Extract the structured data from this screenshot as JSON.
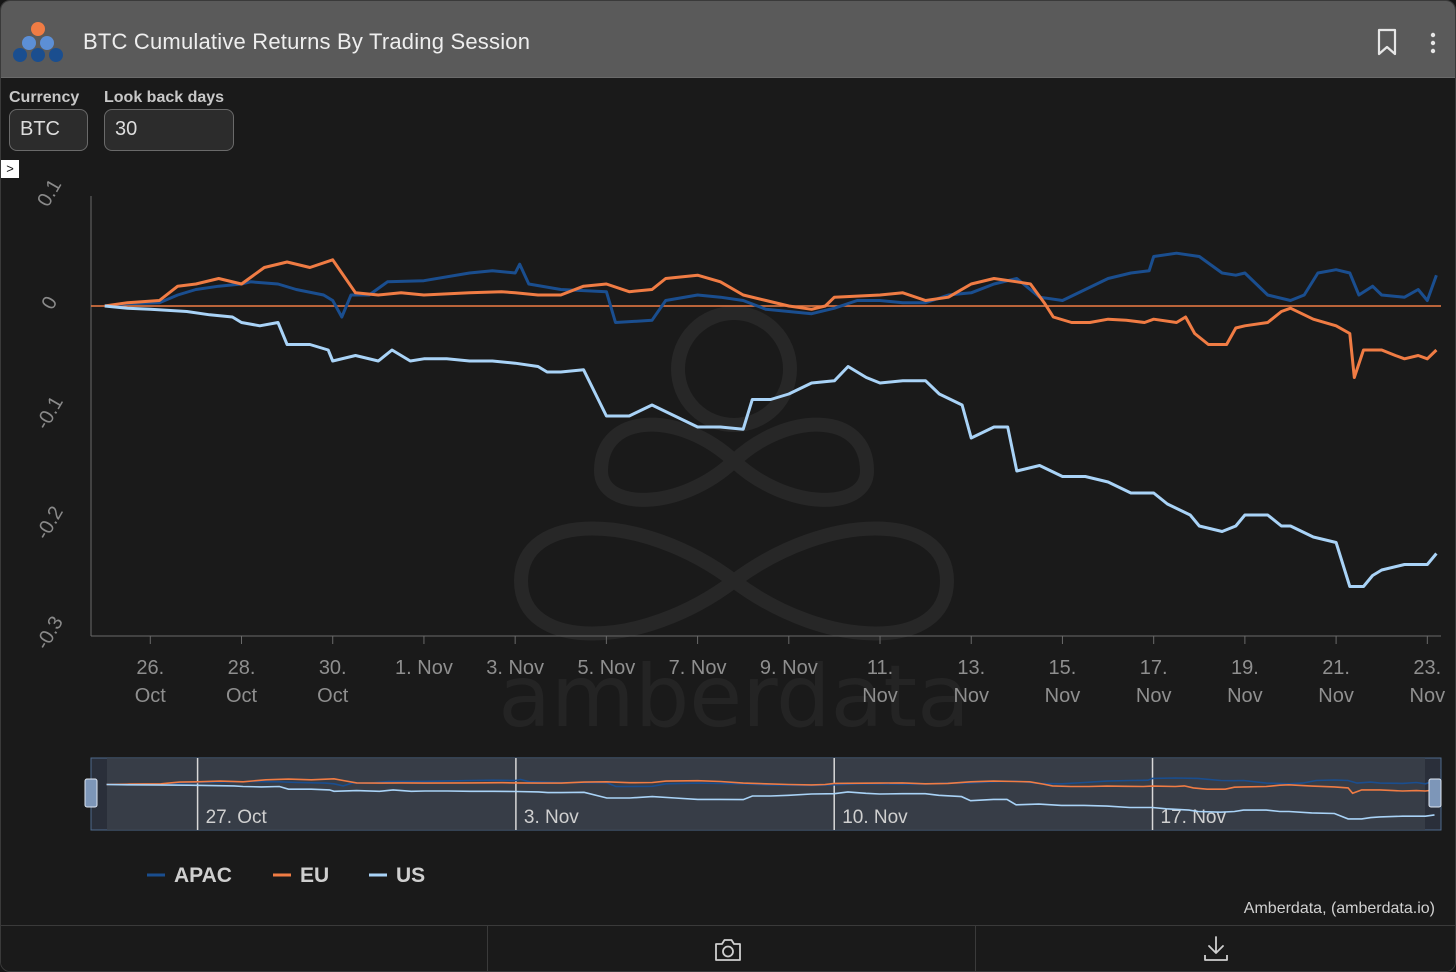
{
  "header": {
    "title": "BTC Cumulative Returns By Trading Session",
    "icons": [
      "app-logo-icon",
      "bookmark-icon",
      "more-vertical-icon"
    ]
  },
  "controls": {
    "currency_label": "Currency",
    "currency_value": "BTC",
    "lookback_label": "Look back days",
    "lookback_value": "30",
    "expand_glyph": ">"
  },
  "watermark_text": "amberdata",
  "credit": "Amberdata, (amberdata.io)",
  "footer": {
    "icons": [
      "camera-icon",
      "download-icon"
    ]
  },
  "colors": {
    "APAC": "#1a4e8f",
    "EU": "#f07c44",
    "US": "#a9d3f7",
    "zero_line": "#f07c44",
    "background": "#161616"
  },
  "chart_data": {
    "type": "line",
    "title": "BTC Cumulative Returns By Trading Session",
    "x_unit": "days since 25 Oct",
    "xlim": [
      -0.3,
      29.3
    ],
    "ylim": [
      -0.3,
      0.1
    ],
    "y_ticks": [
      "0.1",
      "0",
      "-0.1",
      "-0.2",
      "-0.3"
    ],
    "y_tick_values": [
      0.1,
      0,
      -0.1,
      -0.2,
      -0.3
    ],
    "x_ticks": [
      {
        "x": 1,
        "l1": "26.",
        "l2": "Oct"
      },
      {
        "x": 3,
        "l1": "28.",
        "l2": "Oct"
      },
      {
        "x": 5,
        "l1": "30.",
        "l2": "Oct"
      },
      {
        "x": 7,
        "l1": "1. Nov",
        "l2": ""
      },
      {
        "x": 9,
        "l1": "3. Nov",
        "l2": ""
      },
      {
        "x": 11,
        "l1": "5. Nov",
        "l2": ""
      },
      {
        "x": 13,
        "l1": "7. Nov",
        "l2": ""
      },
      {
        "x": 15,
        "l1": "9. Nov",
        "l2": ""
      },
      {
        "x": 17,
        "l1": "11.",
        "l2": "Nov"
      },
      {
        "x": 19,
        "l1": "13.",
        "l2": "Nov"
      },
      {
        "x": 21,
        "l1": "15.",
        "l2": "Nov"
      },
      {
        "x": 23,
        "l1": "17.",
        "l2": "Nov"
      },
      {
        "x": 25,
        "l1": "19.",
        "l2": "Nov"
      },
      {
        "x": 27,
        "l1": "21.",
        "l2": "Nov"
      },
      {
        "x": 29,
        "l1": "23.",
        "l2": "Nov"
      }
    ],
    "navigator_ticks": [
      {
        "x": 2,
        "label": "27. Oct"
      },
      {
        "x": 9,
        "label": "3. Nov"
      },
      {
        "x": 16,
        "label": "10. Nov"
      },
      {
        "x": 23,
        "label": "17. Nov"
      }
    ],
    "series": [
      {
        "name": "APAC",
        "points": [
          [
            0,
            0
          ],
          [
            0.5,
            0.002
          ],
          [
            1.2,
            0.003
          ],
          [
            1.6,
            0.01
          ],
          [
            2,
            0.015
          ],
          [
            2.5,
            0.018
          ],
          [
            3,
            0.02
          ],
          [
            3.2,
            0.022
          ],
          [
            3.8,
            0.02
          ],
          [
            4.2,
            0.015
          ],
          [
            4.8,
            0.01
          ],
          [
            5,
            0.005
          ],
          [
            5.2,
            -0.01
          ],
          [
            5.4,
            0.01
          ],
          [
            5.8,
            0.01
          ],
          [
            6.2,
            0.022
          ],
          [
            7,
            0.023
          ],
          [
            8,
            0.03
          ],
          [
            8.5,
            0.032
          ],
          [
            9,
            0.03
          ],
          [
            9.1,
            0.038
          ],
          [
            9.3,
            0.02
          ],
          [
            10,
            0.015
          ],
          [
            11,
            0.013
          ],
          [
            11.2,
            -0.015
          ],
          [
            12,
            -0.013
          ],
          [
            12.3,
            0.005
          ],
          [
            13,
            0.01
          ],
          [
            13.5,
            0.008
          ],
          [
            14,
            0.005
          ],
          [
            14.5,
            -0.003
          ],
          [
            15,
            -0.005
          ],
          [
            15.5,
            -0.007
          ],
          [
            16,
            -0.002
          ],
          [
            16.5,
            0.005
          ],
          [
            17,
            0.005
          ],
          [
            17.5,
            0.003
          ],
          [
            18,
            0.003
          ],
          [
            18.5,
            0.01
          ],
          [
            19,
            0.012
          ],
          [
            19.5,
            0.02
          ],
          [
            20,
            0.025
          ],
          [
            20.5,
            0.008
          ],
          [
            21,
            0.005
          ],
          [
            21.5,
            0.015
          ],
          [
            22,
            0.025
          ],
          [
            22.5,
            0.03
          ],
          [
            22.9,
            0.032
          ],
          [
            23,
            0.045
          ],
          [
            23.5,
            0.048
          ],
          [
            24,
            0.045
          ],
          [
            24.5,
            0.03
          ],
          [
            24.8,
            0.028
          ],
          [
            25,
            0.03
          ],
          [
            25.5,
            0.01
          ],
          [
            26,
            0.005
          ],
          [
            26.3,
            0.01
          ],
          [
            26.6,
            0.03
          ],
          [
            27,
            0.033
          ],
          [
            27.3,
            0.03
          ],
          [
            27.5,
            0.01
          ],
          [
            27.8,
            0.018
          ],
          [
            28,
            0.01
          ],
          [
            28.5,
            0.008
          ],
          [
            28.8,
            0.015
          ],
          [
            29,
            0.005
          ],
          [
            29.2,
            0.028
          ]
        ]
      },
      {
        "name": "EU",
        "points": [
          [
            0,
            0
          ],
          [
            0.5,
            0.003
          ],
          [
            1.2,
            0.005
          ],
          [
            1.6,
            0.018
          ],
          [
            2,
            0.02
          ],
          [
            2.5,
            0.025
          ],
          [
            3,
            0.02
          ],
          [
            3.5,
            0.035
          ],
          [
            4,
            0.04
          ],
          [
            4.5,
            0.035
          ],
          [
            5,
            0.042
          ],
          [
            5.2,
            0.03
          ],
          [
            5.5,
            0.012
          ],
          [
            6,
            0.01
          ],
          [
            6.5,
            0.012
          ],
          [
            7,
            0.01
          ],
          [
            8,
            0.012
          ],
          [
            8.7,
            0.013
          ],
          [
            9,
            0.012
          ],
          [
            9.5,
            0.01
          ],
          [
            10,
            0.01
          ],
          [
            10.5,
            0.018
          ],
          [
            11,
            0.02
          ],
          [
            11.5,
            0.013
          ],
          [
            12,
            0.015
          ],
          [
            12.3,
            0.025
          ],
          [
            13,
            0.028
          ],
          [
            13.5,
            0.022
          ],
          [
            14,
            0.01
          ],
          [
            14.5,
            0.005
          ],
          [
            15,
            0
          ],
          [
            15.5,
            -0.003
          ],
          [
            15.8,
            0
          ],
          [
            16,
            0.008
          ],
          [
            17,
            0.01
          ],
          [
            17.5,
            0.012
          ],
          [
            18,
            0.005
          ],
          [
            18.5,
            0.008
          ],
          [
            19,
            0.02
          ],
          [
            19.5,
            0.025
          ],
          [
            20,
            0.022
          ],
          [
            20.3,
            0.02
          ],
          [
            20.6,
            0.003
          ],
          [
            20.8,
            -0.01
          ],
          [
            21.2,
            -0.015
          ],
          [
            21.6,
            -0.015
          ],
          [
            22,
            -0.012
          ],
          [
            22.4,
            -0.013
          ],
          [
            22.8,
            -0.015
          ],
          [
            23,
            -0.012
          ],
          [
            23.5,
            -0.015
          ],
          [
            23.7,
            -0.01
          ],
          [
            23.9,
            -0.025
          ],
          [
            24.2,
            -0.035
          ],
          [
            24.6,
            -0.035
          ],
          [
            24.8,
            -0.02
          ],
          [
            25,
            -0.018
          ],
          [
            25.5,
            -0.015
          ],
          [
            25.8,
            -0.005
          ],
          [
            26,
            -0.002
          ],
          [
            26.5,
            -0.012
          ],
          [
            27,
            -0.018
          ],
          [
            27.3,
            -0.025
          ],
          [
            27.4,
            -0.065
          ],
          [
            27.6,
            -0.04
          ],
          [
            28,
            -0.04
          ],
          [
            28.3,
            -0.045
          ],
          [
            28.5,
            -0.048
          ],
          [
            28.8,
            -0.045
          ],
          [
            29,
            -0.048
          ],
          [
            29.2,
            -0.04
          ]
        ]
      },
      {
        "name": "US",
        "points": [
          [
            0,
            0
          ],
          [
            0.5,
            -0.002
          ],
          [
            1,
            -0.003
          ],
          [
            1.8,
            -0.005
          ],
          [
            2.3,
            -0.008
          ],
          [
            2.8,
            -0.01
          ],
          [
            3,
            -0.015
          ],
          [
            3.4,
            -0.018
          ],
          [
            3.8,
            -0.015
          ],
          [
            4,
            -0.035
          ],
          [
            4.5,
            -0.035
          ],
          [
            4.9,
            -0.04
          ],
          [
            5,
            -0.05
          ],
          [
            5.5,
            -0.045
          ],
          [
            6,
            -0.05
          ],
          [
            6.3,
            -0.04
          ],
          [
            6.7,
            -0.05
          ],
          [
            7,
            -0.048
          ],
          [
            7.5,
            -0.048
          ],
          [
            8,
            -0.05
          ],
          [
            8.5,
            -0.05
          ],
          [
            9,
            -0.052
          ],
          [
            9.5,
            -0.055
          ],
          [
            9.7,
            -0.06
          ],
          [
            10,
            -0.06
          ],
          [
            10.5,
            -0.058
          ],
          [
            11,
            -0.1
          ],
          [
            11.5,
            -0.1
          ],
          [
            12,
            -0.09
          ],
          [
            12.5,
            -0.1
          ],
          [
            13,
            -0.11
          ],
          [
            13.5,
            -0.11
          ],
          [
            14,
            -0.112
          ],
          [
            14.2,
            -0.085
          ],
          [
            14.6,
            -0.085
          ],
          [
            15,
            -0.08
          ],
          [
            15.5,
            -0.07
          ],
          [
            16,
            -0.068
          ],
          [
            16.3,
            -0.055
          ],
          [
            16.7,
            -0.065
          ],
          [
            17,
            -0.07
          ],
          [
            17.5,
            -0.068
          ],
          [
            18,
            -0.068
          ],
          [
            18.3,
            -0.08
          ],
          [
            18.8,
            -0.09
          ],
          [
            19,
            -0.12
          ],
          [
            19.5,
            -0.11
          ],
          [
            19.8,
            -0.11
          ],
          [
            20,
            -0.15
          ],
          [
            20.5,
            -0.145
          ],
          [
            21,
            -0.155
          ],
          [
            21.5,
            -0.155
          ],
          [
            22,
            -0.16
          ],
          [
            22.5,
            -0.17
          ],
          [
            23,
            -0.17
          ],
          [
            23.3,
            -0.18
          ],
          [
            23.8,
            -0.19
          ],
          [
            24,
            -0.2
          ],
          [
            24.5,
            -0.205
          ],
          [
            24.8,
            -0.2
          ],
          [
            25,
            -0.19
          ],
          [
            25.5,
            -0.19
          ],
          [
            25.8,
            -0.2
          ],
          [
            26,
            -0.2
          ],
          [
            26.5,
            -0.21
          ],
          [
            27,
            -0.215
          ],
          [
            27.3,
            -0.255
          ],
          [
            27.6,
            -0.255
          ],
          [
            27.8,
            -0.245
          ],
          [
            28,
            -0.24
          ],
          [
            28.5,
            -0.235
          ],
          [
            29,
            -0.235
          ],
          [
            29.2,
            -0.225
          ]
        ]
      }
    ],
    "legend": [
      "APAC",
      "EU",
      "US"
    ],
    "legend_position": "bottom-left"
  }
}
